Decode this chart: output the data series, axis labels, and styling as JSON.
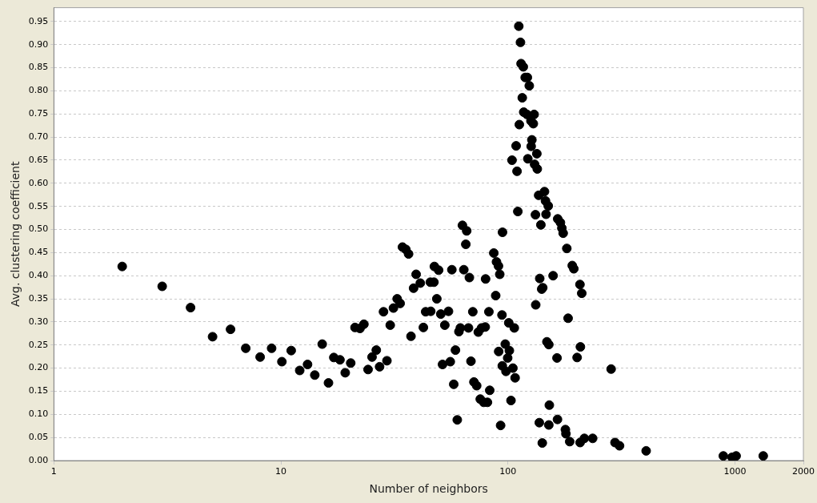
{
  "chart_data": {
    "type": "scatter",
    "xlabel": "Number of neighbors",
    "ylabel": "Avg. clustering coefficient",
    "log": "x",
    "grid": "y",
    "marker": "circle",
    "legend": false,
    "xlim": [
      1,
      2000
    ],
    "xticks": [
      1,
      10,
      100,
      1000,
      2000
    ],
    "ylim": [
      0,
      0.98
    ],
    "yticks": [
      {
        "value": 0,
        "label": "0.00"
      },
      {
        "value": 0.05,
        "label": "0.05"
      },
      {
        "value": 0.1,
        "label": "0.10"
      },
      {
        "value": 0.15,
        "label": "0.15"
      },
      {
        "value": 0.2,
        "label": "0.20"
      },
      {
        "value": 0.25,
        "label": "0.25"
      },
      {
        "value": 0.3,
        "label": "0.30"
      },
      {
        "value": 0.35,
        "label": "0.35"
      },
      {
        "value": 0.4,
        "label": "0.40"
      },
      {
        "value": 0.45,
        "label": "0.45"
      },
      {
        "value": 0.5,
        "label": "0.50"
      },
      {
        "value": 0.55,
        "label": "0.55"
      },
      {
        "value": 0.6,
        "label": "0.60"
      },
      {
        "value": 0.65,
        "label": "0.65"
      },
      {
        "value": 0.7,
        "label": "0.70"
      },
      {
        "value": 0.75,
        "label": "0.75"
      },
      {
        "value": 0.8,
        "label": "0.80"
      },
      {
        "value": 0.85,
        "label": "0.85"
      },
      {
        "value": 0.9,
        "label": "0.90"
      },
      {
        "value": 0.95,
        "label": "0.95"
      }
    ],
    "series": [
      {
        "color": "#000000",
        "x": [
          2,
          3,
          4,
          5,
          6,
          7,
          8.1,
          9.1,
          10.1,
          11.1,
          12.1,
          13.1,
          14.1,
          15.2,
          16.2,
          17.1,
          18.2,
          19.2,
          20.3,
          21.2,
          22.3,
          23.2,
          24.2,
          25.2,
          26.3,
          27.2,
          29.3,
          28.3,
          30.3,
          31.3,
          32.5,
          33.5,
          34.3,
          35.5,
          36.5,
          37.4,
          38.4,
          39.4,
          41.1,
          42.4,
          43.4,
          45.5,
          47.2,
          45.7,
          47.4,
          48.6,
          49.5,
          50.6,
          52.7,
          51.5,
          54.7,
          55.7,
          56.6,
          57.7,
          58.7,
          59.8,
          60.8,
          61.7,
          63.9,
          63,
          65.8,
          65.2,
          67,
          67.6,
          68.7,
          70,
          70.8,
          72.8,
          74,
          75.5,
          78.2,
          81.2,
          76.5,
          79.4,
          79.7,
          82.4,
          83.1,
          86.6,
          89,
          90.8,
          92,
          88.3,
          91,
          92.8,
          94.1,
          94.6,
          94.4,
          97.3,
          100.8,
          101.4,
          99.7,
          98,
          105.1,
          107.5,
          106.6,
          103.1,
          132.5,
          138,
          140.8,
          142.3,
          158,
          148.4,
          151.3,
          164.4,
          137.4,
          141.6,
          151.3,
          152.1,
          165.2,
          179,
          180,
          187,
          181.6,
          191.9,
          195,
          207.5,
          211.3,
          184,
          208.4,
          201.6,
          207.8,
          217,
          236,
          284.6,
          296,
          310,
          406,
          888,
          970,
          1011,
          1331,
          111.6,
          113.5,
          114.2,
          116.8,
          119.1,
          121.7,
          124.1,
          115.6,
          117.3,
          121.3,
          130.4,
          126.2,
          129.3,
          112.2,
          127.4,
          126.5,
          108.6,
          134,
          104.2,
          122.3,
          131,
          134.6,
          109.6,
          144.8,
          136.5,
          146.3,
          150.4,
          110.5,
          132.1,
          147.1,
          139.6,
          165.6,
          170.2,
          172.7,
          175
        ],
        "values": [
          0.42,
          0.377,
          0.331,
          0.268,
          0.284,
          0.243,
          0.224,
          0.243,
          0.214,
          0.238,
          0.195,
          0.208,
          0.185,
          0.252,
          0.168,
          0.223,
          0.218,
          0.19,
          0.211,
          0.288,
          0.286,
          0.295,
          0.197,
          0.224,
          0.239,
          0.203,
          0.216,
          0.322,
          0.293,
          0.33,
          0.35,
          0.34,
          0.462,
          0.457,
          0.447,
          0.269,
          0.373,
          0.403,
          0.384,
          0.288,
          0.322,
          0.386,
          0.386,
          0.323,
          0.42,
          0.35,
          0.412,
          0.317,
          0.293,
          0.208,
          0.323,
          0.214,
          0.413,
          0.165,
          0.239,
          0.088,
          0.279,
          0.287,
          0.413,
          0.509,
          0.497,
          0.468,
          0.287,
          0.396,
          0.215,
          0.322,
          0.17,
          0.162,
          0.278,
          0.133,
          0.126,
          0.126,
          0.287,
          0.289,
          0.393,
          0.322,
          0.152,
          0.449,
          0.43,
          0.421,
          0.403,
          0.357,
          0.236,
          0.076,
          0.315,
          0.494,
          0.205,
          0.252,
          0.298,
          0.238,
          0.222,
          0.193,
          0.2,
          0.179,
          0.287,
          0.13,
          0.337,
          0.394,
          0.371,
          0.374,
          0.4,
          0.257,
          0.251,
          0.222,
          0.082,
          0.038,
          0.077,
          0.12,
          0.089,
          0.067,
          0.058,
          0.041,
          0.459,
          0.422,
          0.415,
          0.381,
          0.362,
          0.308,
          0.246,
          0.223,
          0.039,
          0.048,
          0.048,
          0.198,
          0.039,
          0.032,
          0.021,
          0.01,
          0.007,
          0.01,
          0.01,
          0.94,
          0.905,
          0.859,
          0.852,
          0.829,
          0.829,
          0.811,
          0.785,
          0.754,
          0.749,
          0.749,
          0.735,
          0.729,
          0.727,
          0.694,
          0.68,
          0.681,
          0.664,
          0.65,
          0.653,
          0.641,
          0.631,
          0.626,
          0.582,
          0.574,
          0.562,
          0.551,
          0.539,
          0.532,
          0.533,
          0.51,
          0.523,
          0.515,
          0.503,
          0.492
        ]
      }
    ]
  }
}
